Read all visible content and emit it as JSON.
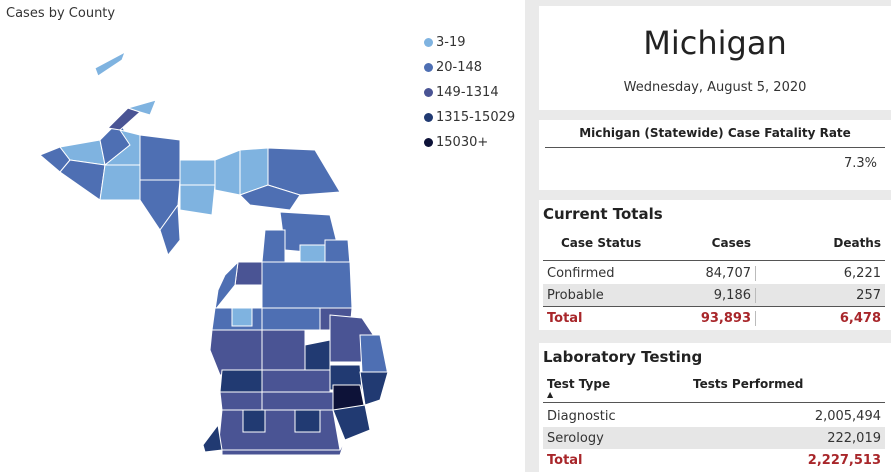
{
  "map": {
    "title": "Cases by County",
    "legend": [
      {
        "label": "3-19",
        "color": "#7fb3e0"
      },
      {
        "label": "20-148",
        "color": "#4e6fb3"
      },
      {
        "label": "149-1314",
        "color": "#4a5494"
      },
      {
        "label": "1315-15029",
        "color": "#213a72"
      },
      {
        "label": "15030+",
        "color": "#0d1238"
      }
    ]
  },
  "state": {
    "name": "Michigan",
    "date": "Wednesday, August 5, 2020"
  },
  "fatality": {
    "title": "Michigan (Statewide) Case Fatality Rate",
    "value": "7.3%"
  },
  "totals": {
    "heading": "Current Totals",
    "headers": [
      "Case Status",
      "Cases",
      "Deaths"
    ],
    "rows": [
      {
        "status": "Confirmed",
        "cases": "84,707",
        "deaths": "6,221"
      },
      {
        "status": "Probable",
        "cases": "9,186",
        "deaths": "257"
      },
      {
        "status": "Total",
        "cases": "93,893",
        "deaths": "6,478"
      }
    ]
  },
  "lab": {
    "heading": "Laboratory Testing",
    "headers": [
      "Test Type",
      "Tests Performed"
    ],
    "rows": [
      {
        "type": "Diagnostic",
        "tests": "2,005,494"
      },
      {
        "type": "Serology",
        "tests": "222,019"
      },
      {
        "type": "Total",
        "tests": "2,227,513"
      }
    ]
  }
}
